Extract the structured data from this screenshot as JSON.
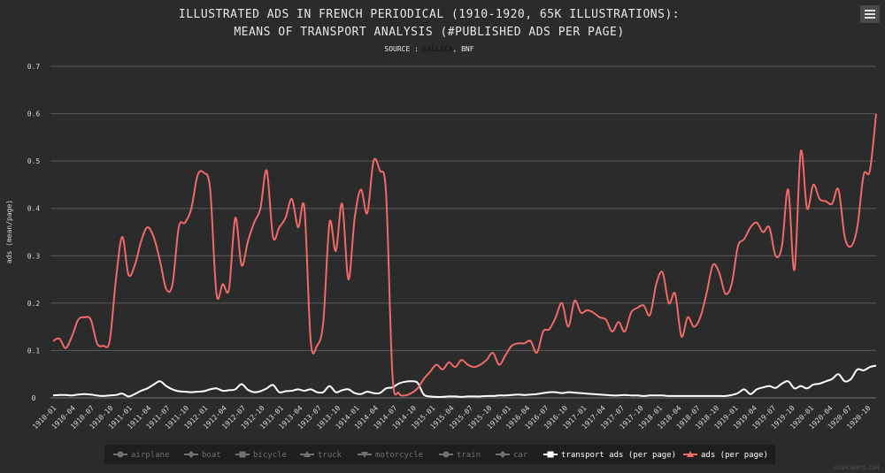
{
  "chart_data": {
    "type": "line",
    "title_lines": [
      "ILLUSTRATED ADS IN FRENCH PERIODICAL (1910-1920, 65K ILLUSTRATIONS):",
      "MEANS OF TRANSPORT ANALYSIS (#PUBLISHED ADS PER PAGE)"
    ],
    "subtitle": {
      "prefix": "SOURCE : ",
      "link": "GALLICA",
      "suffix": ", BNF"
    },
    "ylabel": "ads (mean/page)",
    "ylim": [
      0,
      0.7
    ],
    "yticks": [
      "0",
      "0.1",
      "0.2",
      "0.3",
      "0.4",
      "0.5",
      "0.6",
      "0.7"
    ],
    "xticks": [
      "1910-01",
      "1910-04",
      "1910-07",
      "1910-10",
      "1911-01",
      "1911-04",
      "1911-07",
      "1911-10",
      "1912-01",
      "1912-04",
      "1912-07",
      "1912-10",
      "1913-01",
      "1913-04",
      "1913-07",
      "1913-10",
      "1914-01",
      "1914-04",
      "1914-07",
      "1914-10",
      "1915-01",
      "1915-04",
      "1915-07",
      "1915-10",
      "1916-01",
      "1916-04",
      "1916-07",
      "1916-10",
      "1917-01",
      "1917-04",
      "1917-07",
      "1917-10",
      "1918-01",
      "1918-04",
      "1918-07",
      "1918-10",
      "1919-01",
      "1919-04",
      "1919-07",
      "1919-10",
      "1920-01",
      "1920-04",
      "1920-07",
      "1920-10"
    ],
    "grid": true,
    "series": [
      {
        "name": "airplane",
        "visible": false,
        "symbol": "circle"
      },
      {
        "name": "boat",
        "visible": false,
        "symbol": "diamond"
      },
      {
        "name": "bicycle",
        "visible": false,
        "symbol": "square"
      },
      {
        "name": "truck",
        "visible": false,
        "symbol": "triangle"
      },
      {
        "name": "motorcycle",
        "visible": false,
        "symbol": "triangle-down"
      },
      {
        "name": "train",
        "visible": false,
        "symbol": "circle"
      },
      {
        "name": "car",
        "visible": false,
        "symbol": "diamond"
      },
      {
        "name": "transport ads (per page)",
        "visible": true,
        "color": "#ffffff",
        "symbol": "square",
        "values": [
          0.005,
          0.006,
          0.006,
          0.005,
          0.007,
          0.008,
          0.007,
          0.005,
          0.004,
          0.005,
          0.006,
          0.009,
          0.003,
          0.008,
          0.015,
          0.02,
          0.028,
          0.035,
          0.025,
          0.018,
          0.014,
          0.013,
          0.012,
          0.013,
          0.014,
          0.018,
          0.02,
          0.015,
          0.016,
          0.018,
          0.029,
          0.017,
          0.012,
          0.014,
          0.02,
          0.027,
          0.012,
          0.014,
          0.015,
          0.018,
          0.015,
          0.018,
          0.012,
          0.012,
          0.025,
          0.012,
          0.016,
          0.018,
          0.01,
          0.008,
          0.013,
          0.01,
          0.01,
          0.02,
          0.022,
          0.03,
          0.034,
          0.035,
          0.032,
          0.007,
          0.003,
          0.002,
          0.002,
          0.003,
          0.003,
          0.002,
          0.003,
          0.003,
          0.003,
          0.004,
          0.004,
          0.005,
          0.005,
          0.006,
          0.007,
          0.006,
          0.007,
          0.008,
          0.01,
          0.012,
          0.012,
          0.01,
          0.012,
          0.011,
          0.01,
          0.009,
          0.008,
          0.007,
          0.006,
          0.005,
          0.005,
          0.006,
          0.005,
          0.005,
          0.004,
          0.005,
          0.005,
          0.005,
          0.004,
          0.004,
          0.004,
          0.004,
          0.004,
          0.004,
          0.004,
          0.004,
          0.004,
          0.004,
          0.006,
          0.01,
          0.018,
          0.008,
          0.018,
          0.022,
          0.025,
          0.021,
          0.03,
          0.035,
          0.02,
          0.025,
          0.02,
          0.028,
          0.03,
          0.035,
          0.04,
          0.05,
          0.035,
          0.04,
          0.06,
          0.058,
          0.065,
          0.068
        ]
      },
      {
        "name": "ads (per page)",
        "visible": true,
        "color": "#f06a68",
        "symbol": "triangle",
        "values": [
          0.12,
          0.125,
          0.105,
          0.13,
          0.165,
          0.17,
          0.165,
          0.115,
          0.11,
          0.12,
          0.25,
          0.34,
          0.26,
          0.28,
          0.33,
          0.36,
          0.34,
          0.29,
          0.23,
          0.24,
          0.36,
          0.37,
          0.4,
          0.47,
          0.475,
          0.44,
          0.22,
          0.24,
          0.23,
          0.38,
          0.28,
          0.33,
          0.37,
          0.4,
          0.48,
          0.34,
          0.36,
          0.38,
          0.42,
          0.36,
          0.4,
          0.12,
          0.11,
          0.16,
          0.37,
          0.31,
          0.41,
          0.25,
          0.38,
          0.44,
          0.39,
          0.5,
          0.48,
          0.43,
          0.05,
          0.01,
          0.005,
          0.01,
          0.02,
          0.04,
          0.055,
          0.07,
          0.06,
          0.075,
          0.065,
          0.08,
          0.07,
          0.065,
          0.07,
          0.08,
          0.095,
          0.07,
          0.09,
          0.11,
          0.115,
          0.115,
          0.12,
          0.095,
          0.14,
          0.145,
          0.17,
          0.2,
          0.15,
          0.205,
          0.18,
          0.185,
          0.18,
          0.17,
          0.165,
          0.14,
          0.16,
          0.14,
          0.18,
          0.19,
          0.195,
          0.175,
          0.24,
          0.265,
          0.2,
          0.22,
          0.13,
          0.17,
          0.15,
          0.17,
          0.22,
          0.28,
          0.265,
          0.22,
          0.24,
          0.32,
          0.335,
          0.36,
          0.37,
          0.35,
          0.36,
          0.3,
          0.32,
          0.44,
          0.27,
          0.52,
          0.4,
          0.45,
          0.42,
          0.415,
          0.41,
          0.44,
          0.34,
          0.32,
          0.36,
          0.47,
          0.48,
          0.6
        ]
      }
    ],
    "legend_position": "bottom-center",
    "credits": "HIGHCHARTS.COM"
  }
}
